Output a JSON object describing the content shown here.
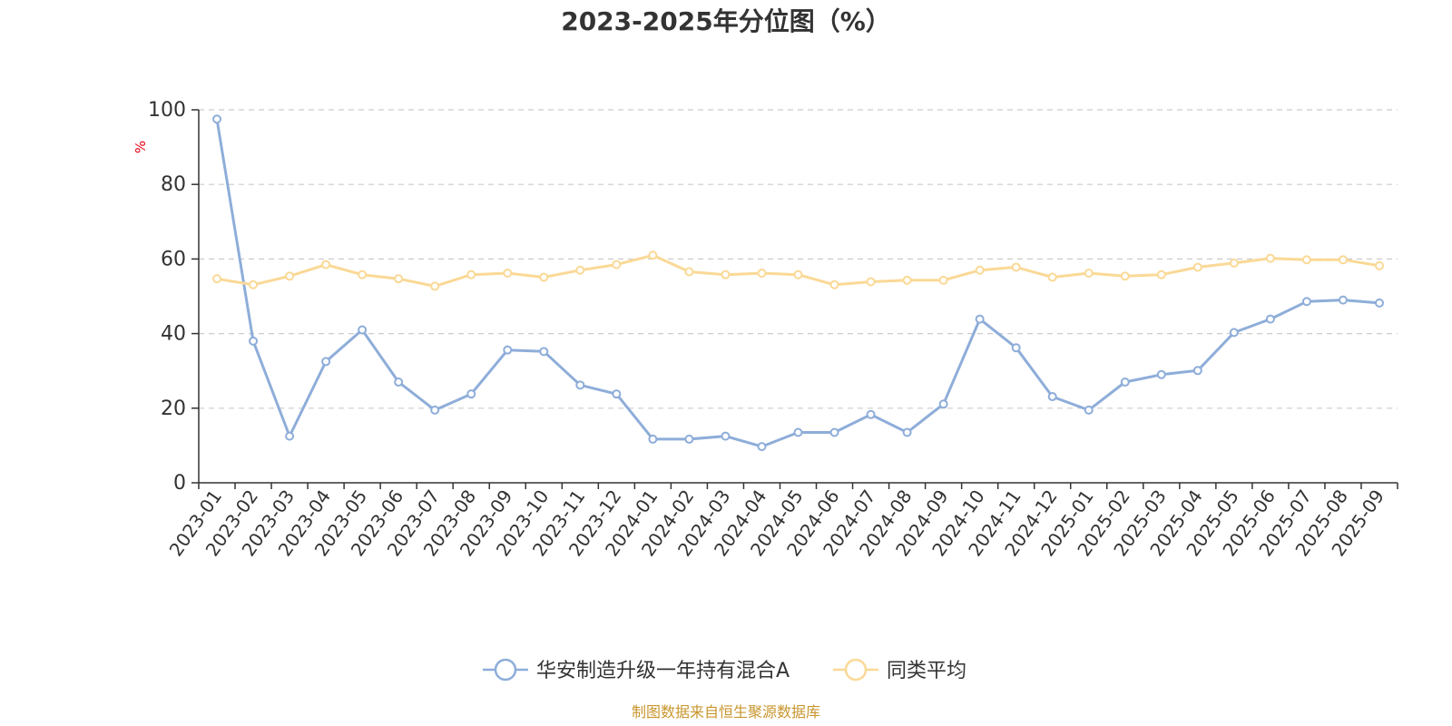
{
  "chart_data": {
    "type": "line",
    "title": "2023-2025年分位图（%）",
    "ylabel": "%",
    "ylim": [
      0,
      100
    ],
    "yticks": [
      0,
      20,
      40,
      60,
      80,
      100
    ],
    "grid": "horizontal-dashed",
    "legend_position": "bottom-center",
    "categories": [
      "2023-01",
      "2023-02",
      "2023-03",
      "2023-04",
      "2023-05",
      "2023-06",
      "2023-07",
      "2023-08",
      "2023-09",
      "2023-10",
      "2023-11",
      "2023-12",
      "2024-01",
      "2024-02",
      "2024-03",
      "2024-04",
      "2024-05",
      "2024-06",
      "2024-07",
      "2024-08",
      "2024-09",
      "2024-10",
      "2024-11",
      "2024-12",
      "2025-01",
      "2025-02",
      "2025-03",
      "2025-04",
      "2025-05",
      "2025-06",
      "2025-07",
      "2025-08",
      "2025-09"
    ],
    "series": [
      {
        "name": "华安制造升级一年持有混合A",
        "color": "#8eadd9",
        "values": [
          97.5,
          38,
          12.5,
          32.5,
          41,
          27,
          19.5,
          23.8,
          35.6,
          35.2,
          26.2,
          23.8,
          11.7,
          11.7,
          12.5,
          9.7,
          13.5,
          13.5,
          18.3,
          13.5,
          21.1,
          43.9,
          36.2,
          23.1,
          19.5,
          27,
          29,
          30.1,
          40.3,
          43.9,
          48.6,
          49,
          48.2
        ]
      },
      {
        "name": "同类平均",
        "color": "#fad996",
        "values": [
          54.7,
          53.1,
          55.4,
          58.5,
          55.8,
          54.7,
          52.7,
          55.8,
          56.2,
          55.1,
          57,
          58.5,
          61,
          56.6,
          55.8,
          56.2,
          55.8,
          53.1,
          53.9,
          54.3,
          54.3,
          57,
          57.8,
          55.1,
          56.2,
          55.4,
          55.8,
          57.8,
          58.9,
          60.2,
          59.8,
          59.8,
          58.2
        ]
      }
    ]
  },
  "source_note": "制图数据来自恒生聚源数据库"
}
